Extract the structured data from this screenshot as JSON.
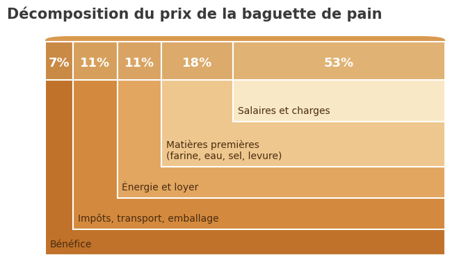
{
  "chart_data": {
    "type": "bar",
    "title": "Décomposition du prix de la baguette de pain",
    "orientation": "horizontal",
    "stacked": true,
    "data_labels": true,
    "tick_labels": false,
    "categories": [
      "Bénéfice",
      "Impôts, transport, emballage",
      "Énergie et loyer",
      "Matières premières\n(farine, eau, sel, levure)",
      "Salaires et charges"
    ],
    "values": [
      7,
      11,
      11,
      18,
      53
    ],
    "value_labels": [
      "7%",
      "11%",
      "11%",
      "18%",
      "53%"
    ],
    "colors": [
      "#c0722a",
      "#d48a3e",
      "#e2a660",
      "#eec78e",
      "#f9e8c6"
    ]
  }
}
